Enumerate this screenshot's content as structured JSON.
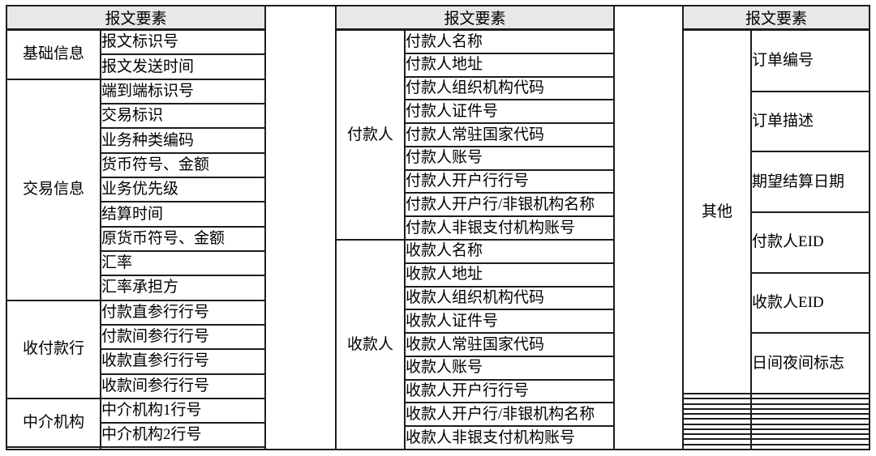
{
  "colors": {
    "header_bg": "#e8e8e8",
    "border": "#1d1d1d",
    "text": "#000000"
  },
  "tables": [
    {
      "name": "message-elements-left",
      "header": "报文要素",
      "sections": [
        {
          "category": "基础信息",
          "items": [
            "报文标识号",
            "报文发送时间"
          ]
        },
        {
          "category": "交易信息",
          "items": [
            "端到端标识号",
            "交易标识",
            "业务种类编码",
            "货币符号、金额",
            "业务优先级",
            "结算时间",
            "原货币符号、金额",
            "汇率",
            "汇率承担方"
          ]
        },
        {
          "category": "收付款行",
          "items": [
            "付款直参行行号",
            "付款间参行行号",
            "收款直参行行号",
            "收款间参行行号"
          ]
        },
        {
          "category": "中介机构",
          "items": [
            "中介机构1行号",
            "中介机构2行号"
          ]
        },
        {
          "category": "",
          "items": [
            ""
          ]
        }
      ]
    },
    {
      "name": "message-elements-middle",
      "header": "报文要素",
      "sections": [
        {
          "category": "付款人",
          "items": [
            "付款人名称",
            "付款人地址",
            "付款人组织机构代码",
            "付款人证件号",
            "付款人常驻国家代码",
            "付款人账号",
            "付款人开户行行号",
            "付款人开户行/非银机构名称",
            "付款人非银支付机构账号"
          ]
        },
        {
          "category": "收款人",
          "items": [
            "收款人名称",
            "收款人地址",
            "收款人组织机构代码",
            "收款人证件号",
            "收款人常驻国家代码",
            "收款人账号",
            "收款人开户行行号",
            "收款人开户行/非银机构名称",
            "收款人非银支付机构账号"
          ]
        }
      ]
    },
    {
      "name": "message-elements-right",
      "header": "报文要素",
      "sections": [
        {
          "category": "其他",
          "items": [
            "订单编号",
            "订单描述",
            "期望结算日期",
            "付款人EID",
            "收款人EID",
            "日间夜间标志"
          ]
        },
        {
          "category": "",
          "items": [
            ""
          ]
        },
        {
          "category": "",
          "items": [
            ""
          ]
        },
        {
          "category": "",
          "items": [
            ""
          ]
        },
        {
          "category": "",
          "items": [
            ""
          ]
        },
        {
          "category": "",
          "items": [
            ""
          ]
        },
        {
          "category": "",
          "items": [
            ""
          ]
        },
        {
          "category": "",
          "items": [
            ""
          ]
        },
        {
          "category": "",
          "items": [
            ""
          ]
        },
        {
          "category": "",
          "items": [
            ""
          ]
        },
        {
          "category": "",
          "items": [
            ""
          ]
        },
        {
          "category": "",
          "items": [
            ""
          ]
        }
      ]
    }
  ]
}
